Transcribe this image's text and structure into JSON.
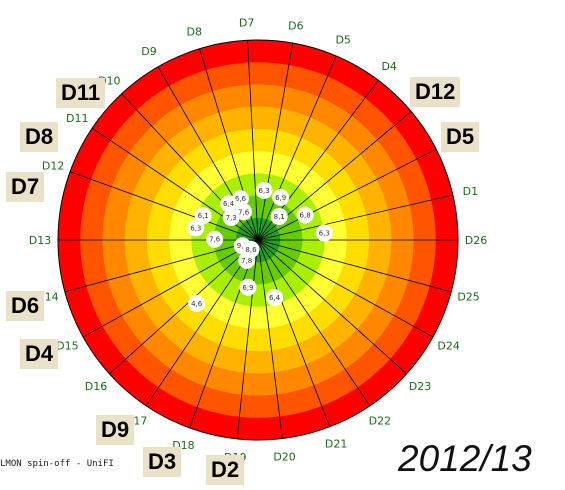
{
  "chart_data": {
    "type": "scatter",
    "projection": "polar",
    "direction_labels": [
      "D1",
      "D2",
      "D3",
      "D4",
      "D5",
      "D6",
      "D7",
      "D8",
      "D9",
      "D10",
      "D11",
      "D12",
      "D13",
      "D14",
      "D15",
      "D16",
      "D17",
      "D18",
      "D19",
      "D20",
      "D21",
      "D22",
      "D23",
      "D24",
      "D25",
      "D26"
    ],
    "direction_angles_deg": [
      -13,
      -27,
      -40,
      -53,
      -67,
      -80,
      -93,
      -107,
      -120,
      -133,
      -146,
      -160,
      -180,
      -195,
      -209,
      -222,
      -236,
      -250,
      -264,
      -277,
      -291,
      -304,
      -318,
      -331,
      -345,
      0
    ],
    "radial_range": [
      0,
      6
    ],
    "ring_colors": [
      "#22a122",
      "#66cc00",
      "#aaee00",
      "#ffff33",
      "#ffdd00",
      "#ffb300",
      "#ff8800",
      "#ff5500",
      "#ff0000"
    ],
    "points": [
      {
        "label": "6,3",
        "angle_deg": -83,
        "r": 1.5
      },
      {
        "label": "6,9",
        "angle_deg": -62,
        "r": 1.45
      },
      {
        "label": "6,8",
        "angle_deg": -28,
        "r": 1.6
      },
      {
        "label": "6,3",
        "angle_deg": -6,
        "r": 2.0
      },
      {
        "label": "8,1",
        "angle_deg": -48,
        "r": 0.95
      },
      {
        "label": "7,6",
        "angle_deg": -117,
        "r": 0.95
      },
      {
        "label": "6,6",
        "angle_deg": -113,
        "r": 1.35
      },
      {
        "label": "6,4",
        "angle_deg": -129,
        "r": 1.4
      },
      {
        "label": "7,3",
        "angle_deg": -140,
        "r": 1.05
      },
      {
        "label": "6,1",
        "angle_deg": -156,
        "r": 1.8
      },
      {
        "label": "6,3",
        "angle_deg": -169,
        "r": 1.9
      },
      {
        "label": "7,6",
        "angle_deg": -179,
        "r": 1.3
      },
      {
        "label": "9,8",
        "angle_deg": -200,
        "r": 0.5
      },
      {
        "label": "8,6",
        "angle_deg": -233,
        "r": 0.35
      },
      {
        "label": "7,8",
        "angle_deg": -241,
        "r": 0.7
      },
      {
        "label": "6,9",
        "angle_deg": -258,
        "r": 1.45
      },
      {
        "label": "6,4",
        "angle_deg": -286,
        "r": 1.8
      },
      {
        "label": "4,6",
        "angle_deg": -226,
        "r": 2.65
      }
    ]
  },
  "overlay_labels": [
    "D11",
    "D12",
    "D8",
    "D5",
    "D7",
    "D6",
    "D4",
    "D9",
    "D3",
    "D2"
  ],
  "footer_text": "LMON spin-off - UniFI",
  "season": "2012/13"
}
